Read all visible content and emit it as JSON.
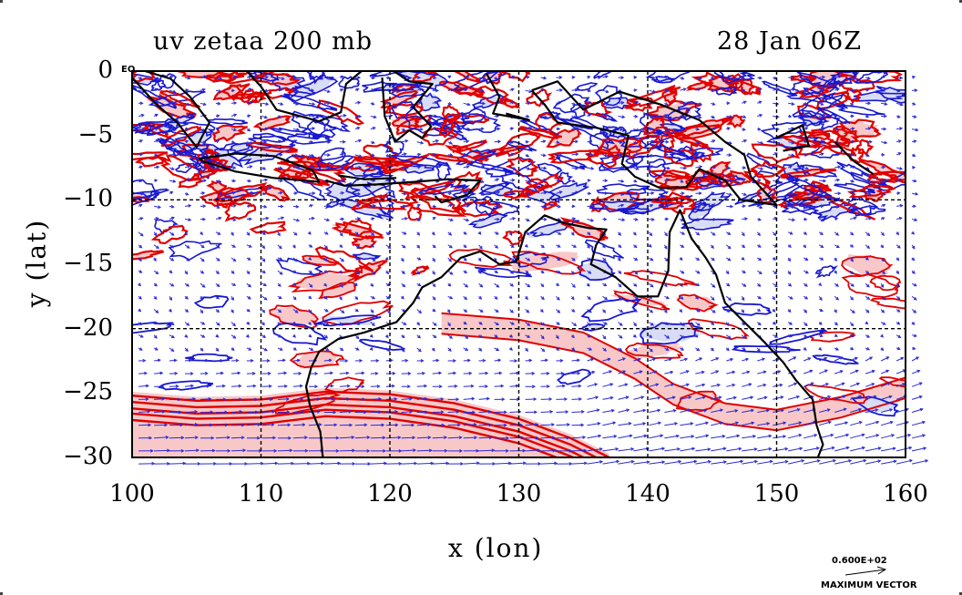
{
  "title_left": "uv zetaa 200 mb",
  "title_right": "28 Jan 06Z",
  "equator_label": "EQ",
  "x_axis": {
    "label": "x (lon)",
    "ticks": [
      "100",
      "110",
      "120",
      "130",
      "140",
      "150",
      "160"
    ],
    "range": [
      100,
      160
    ]
  },
  "y_axis": {
    "label": "y (lat)",
    "ticks": [
      "0",
      "−5",
      "−10",
      "−15",
      "−20",
      "−25",
      "−30"
    ],
    "range": [
      -30,
      0
    ]
  },
  "vector_key": {
    "magnitude": "0.600E+02",
    "label": "MAXIMUM VECTOR"
  },
  "colors": {
    "positive": "#e00000",
    "negative": "#1818d0",
    "positive_fill": "#f8c8c8",
    "negative_fill": "#d8dcf4",
    "coast": "#000000"
  },
  "map_kind": "contour plot of vorticity with wind vectors"
}
